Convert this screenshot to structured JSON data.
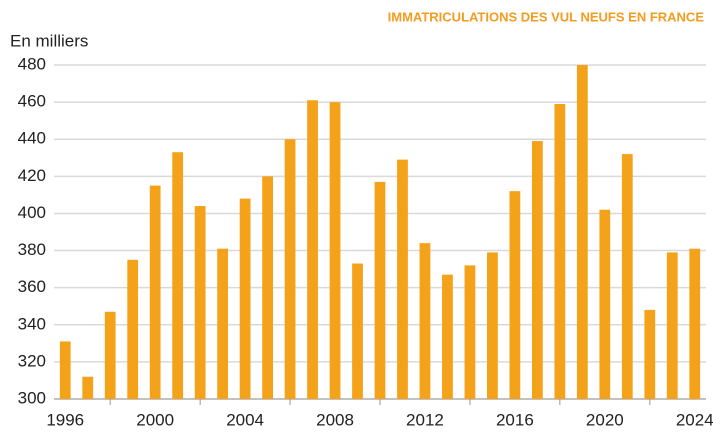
{
  "chart_data": {
    "type": "bar",
    "title": "IMMATRICULATIONS DES VUL NEUFS EN FRANCE",
    "y_label": "En milliers",
    "categories": [
      "1996",
      null,
      null,
      null,
      "2000",
      null,
      null,
      null,
      "2004",
      null,
      null,
      null,
      "2008",
      null,
      null,
      null,
      "2012",
      null,
      null,
      null,
      "2016",
      null,
      null,
      null,
      "2020",
      null,
      null,
      null,
      "2024"
    ],
    "values": [
      331,
      312,
      347,
      375,
      415,
      433,
      404,
      381,
      408,
      420,
      440,
      461,
      460,
      373,
      417,
      429,
      384,
      367,
      372,
      379,
      412,
      439,
      459,
      480,
      402,
      432,
      348,
      379,
      381
    ],
    "color": "#f5a21b",
    "ylim": [
      300,
      480
    ],
    "yticks": [
      300,
      320,
      340,
      360,
      380,
      400,
      420,
      440,
      460,
      480
    ],
    "grid": true
  }
}
